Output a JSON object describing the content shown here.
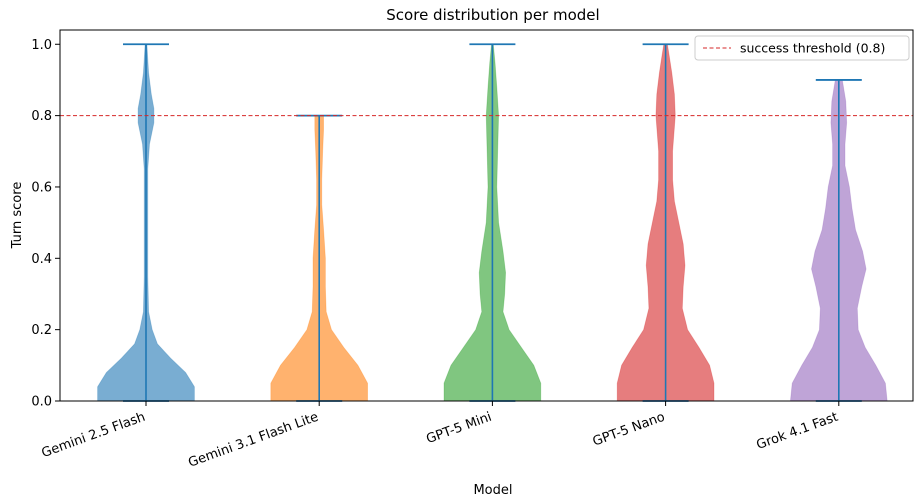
{
  "chart_data": {
    "type": "violin",
    "title": "Score distribution per model",
    "xlabel": "Model",
    "ylabel": "Turn score",
    "ylim": [
      0,
      1.04
    ],
    "yticks": [
      0.0,
      0.2,
      0.4,
      0.6,
      0.8,
      1.0
    ],
    "ytick_labels": [
      "0.0",
      "0.2",
      "0.4",
      "0.6",
      "0.8",
      "1.0"
    ],
    "categories": [
      "Gemini 2.5 Flash",
      "Gemini 3.1 Flash Lite",
      "GPT-5 Mini",
      "GPT-5 Nano",
      "Grok 4.1 Fast"
    ],
    "series": [
      {
        "category": "Gemini 2.5 Flash",
        "color": "#1f77b4",
        "min": 0.0,
        "max": 1.0,
        "density": [
          [
            0.0,
            0.55
          ],
          [
            0.04,
            0.55
          ],
          [
            0.08,
            0.45
          ],
          [
            0.12,
            0.28
          ],
          [
            0.16,
            0.13
          ],
          [
            0.2,
            0.07
          ],
          [
            0.25,
            0.03
          ],
          [
            0.35,
            0.02
          ],
          [
            0.5,
            0.02
          ],
          [
            0.65,
            0.02
          ],
          [
            0.72,
            0.04
          ],
          [
            0.78,
            0.09
          ],
          [
            0.82,
            0.09
          ],
          [
            0.86,
            0.06
          ],
          [
            0.92,
            0.03
          ],
          [
            1.0,
            0.01
          ]
        ]
      },
      {
        "category": "Gemini 3.1 Flash Lite",
        "color": "#ff7f0e",
        "min": 0.0,
        "max": 0.8,
        "density": [
          [
            0.0,
            0.55
          ],
          [
            0.05,
            0.55
          ],
          [
            0.1,
            0.44
          ],
          [
            0.15,
            0.28
          ],
          [
            0.2,
            0.14
          ],
          [
            0.25,
            0.08
          ],
          [
            0.32,
            0.07
          ],
          [
            0.4,
            0.07
          ],
          [
            0.48,
            0.05
          ],
          [
            0.55,
            0.03
          ],
          [
            0.62,
            0.03
          ],
          [
            0.7,
            0.04
          ],
          [
            0.76,
            0.05
          ],
          [
            0.8,
            0.05
          ]
        ]
      },
      {
        "category": "GPT-5 Mini",
        "color": "#2ca02c",
        "min": 0.0,
        "max": 1.0,
        "density": [
          [
            0.0,
            0.55
          ],
          [
            0.05,
            0.55
          ],
          [
            0.1,
            0.47
          ],
          [
            0.15,
            0.33
          ],
          [
            0.2,
            0.19
          ],
          [
            0.25,
            0.12
          ],
          [
            0.3,
            0.14
          ],
          [
            0.36,
            0.15
          ],
          [
            0.42,
            0.12
          ],
          [
            0.5,
            0.07
          ],
          [
            0.6,
            0.05
          ],
          [
            0.7,
            0.06
          ],
          [
            0.8,
            0.07
          ],
          [
            0.88,
            0.05
          ],
          [
            0.95,
            0.03
          ],
          [
            1.0,
            0.01
          ]
        ]
      },
      {
        "category": "GPT-5 Nano",
        "color": "#d62728",
        "min": 0.0,
        "max": 1.0,
        "density": [
          [
            0.0,
            0.55
          ],
          [
            0.05,
            0.55
          ],
          [
            0.1,
            0.5
          ],
          [
            0.15,
            0.38
          ],
          [
            0.2,
            0.25
          ],
          [
            0.26,
            0.19
          ],
          [
            0.32,
            0.2
          ],
          [
            0.38,
            0.22
          ],
          [
            0.44,
            0.2
          ],
          [
            0.5,
            0.15
          ],
          [
            0.56,
            0.1
          ],
          [
            0.62,
            0.08
          ],
          [
            0.7,
            0.08
          ],
          [
            0.8,
            0.11
          ],
          [
            0.86,
            0.1
          ],
          [
            0.92,
            0.07
          ],
          [
            0.97,
            0.04
          ],
          [
            1.0,
            0.02
          ]
        ]
      },
      {
        "category": "Grok 4.1 Fast",
        "color": "#9467bd",
        "min": 0.0,
        "max": 0.9,
        "density": [
          [
            0.0,
            0.55
          ],
          [
            0.05,
            0.53
          ],
          [
            0.1,
            0.42
          ],
          [
            0.15,
            0.3
          ],
          [
            0.2,
            0.22
          ],
          [
            0.26,
            0.21
          ],
          [
            0.32,
            0.26
          ],
          [
            0.37,
            0.31
          ],
          [
            0.42,
            0.27
          ],
          [
            0.48,
            0.19
          ],
          [
            0.54,
            0.15
          ],
          [
            0.6,
            0.12
          ],
          [
            0.66,
            0.07
          ],
          [
            0.72,
            0.07
          ],
          [
            0.78,
            0.09
          ],
          [
            0.84,
            0.08
          ],
          [
            0.9,
            0.04
          ]
        ]
      }
    ],
    "threshold": {
      "value": 0.8,
      "label": "success threshold (0.8)",
      "color": "#d62728"
    },
    "legend_position": "top-right"
  }
}
